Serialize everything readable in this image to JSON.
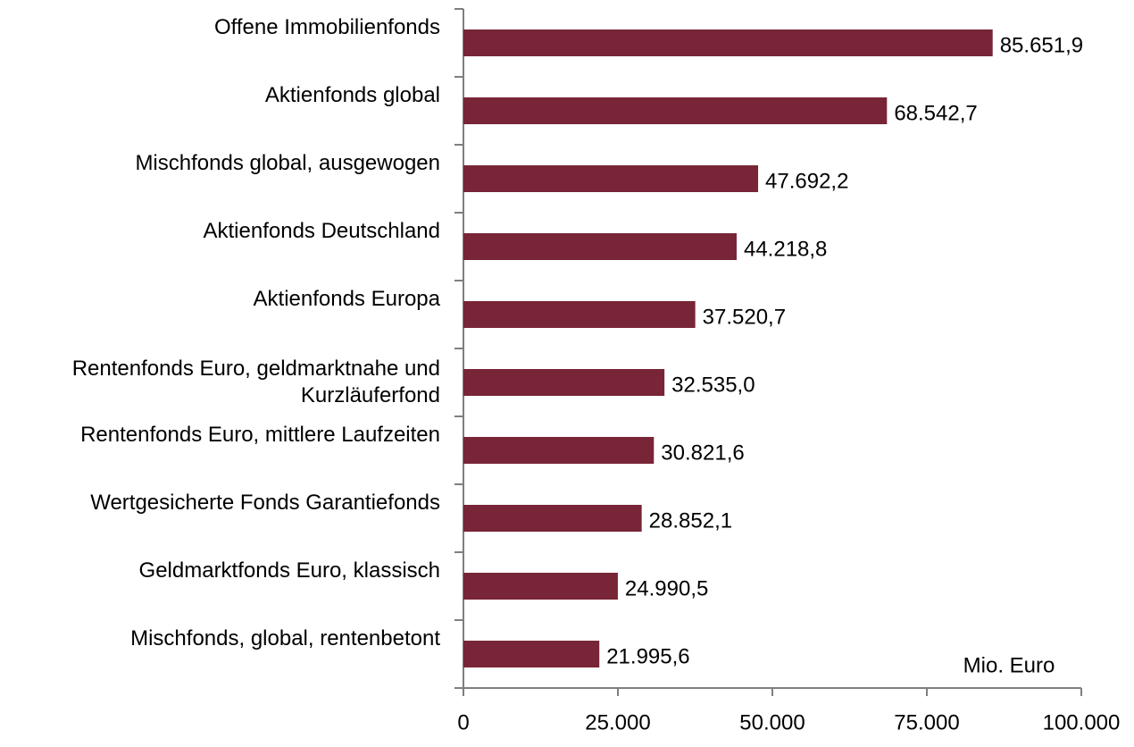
{
  "chart_data": {
    "type": "bar",
    "orientation": "horizontal",
    "categories": [
      "Offene Immobilienfonds",
      "Aktienfonds global",
      "Mischfonds global, ausgewogen",
      "Aktienfonds Deutschland",
      "Aktienfonds Europa",
      "Rentenfonds Euro, geldmarktnahe und\nKurzläuferfond",
      "Rentenfonds Euro, mittlere Laufzeiten",
      "Wertgesicherte Fonds Garantiefonds",
      "Geldmarktfonds Euro, klassisch",
      "Mischfonds, global, rentenbetont"
    ],
    "values": [
      85651.9,
      68542.7,
      47692.2,
      44218.8,
      37520.7,
      32535.0,
      30821.6,
      28852.1,
      24990.5,
      21995.6
    ],
    "value_labels": [
      "85.651,9",
      "68.542,7",
      "47.692,2",
      "44.218,8",
      "37.520,7",
      "32.535,0",
      "30.821,6",
      "28.852,1",
      "24.990,5",
      "21.995,6"
    ],
    "color": "#772537",
    "xlim": [
      0,
      100000
    ],
    "xticks": [
      0,
      {
        "value": 25000,
        "label": "25.000"
      },
      {
        "value": 50000,
        "label": "50.000"
      },
      {
        "value": 75000,
        "label": "75.000"
      },
      {
        "value": 100000,
        "label": "100.000"
      }
    ],
    "annotation": "Mio. Euro"
  }
}
